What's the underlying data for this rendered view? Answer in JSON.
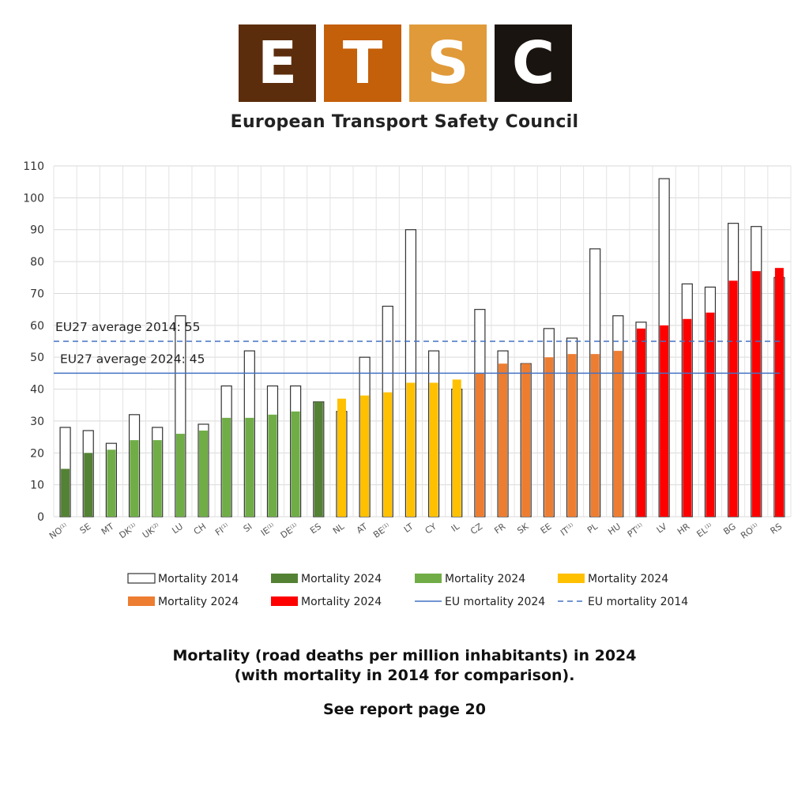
{
  "logo": {
    "letters": [
      {
        "char": "E",
        "color": "#5c2d0c"
      },
      {
        "char": "T",
        "color": "#c45f0a"
      },
      {
        "char": "S",
        "color": "#e09a3a"
      },
      {
        "char": "C",
        "color": "#1a1410"
      }
    ],
    "organization": "European Transport Safety Council"
  },
  "caption": {
    "line1": "Mortality (road deaths per million inhabitants) in 2024",
    "line2": "(with mortality in 2014 for comparison).",
    "line3": "See report page 20"
  },
  "colors": {
    "dark_green": "#548235",
    "light_green": "#70ad47",
    "yellow": "#ffc000",
    "orange": "#ed7d31",
    "red": "#ff0000",
    "eu_line": "#4472c4"
  },
  "chart_data": {
    "type": "bar",
    "ylim": [
      0,
      110
    ],
    "yticks": [
      0,
      10,
      20,
      30,
      40,
      50,
      60,
      70,
      80,
      90,
      100,
      110
    ],
    "grid": true,
    "categories": [
      {
        "code": "NO",
        "sup": "(1)"
      },
      {
        "code": "SE",
        "sup": ""
      },
      {
        "code": "MT",
        "sup": ""
      },
      {
        "code": "DK",
        "sup": "(1)"
      },
      {
        "code": "UK",
        "sup": "(2)"
      },
      {
        "code": "LU",
        "sup": ""
      },
      {
        "code": "CH",
        "sup": ""
      },
      {
        "code": "FI",
        "sup": "(1)"
      },
      {
        "code": "SI",
        "sup": ""
      },
      {
        "code": "IE",
        "sup": "(1)"
      },
      {
        "code": "DE",
        "sup": "(1)"
      },
      {
        "code": "ES",
        "sup": ""
      },
      {
        "code": "NL",
        "sup": ""
      },
      {
        "code": "AT",
        "sup": ""
      },
      {
        "code": "BE",
        "sup": "(1)"
      },
      {
        "code": "LT",
        "sup": ""
      },
      {
        "code": "CY",
        "sup": ""
      },
      {
        "code": "IL",
        "sup": ""
      },
      {
        "code": "CZ",
        "sup": ""
      },
      {
        "code": "FR",
        "sup": ""
      },
      {
        "code": "SK",
        "sup": ""
      },
      {
        "code": "EE",
        "sup": ""
      },
      {
        "code": "IT",
        "sup": "(1)"
      },
      {
        "code": "PL",
        "sup": ""
      },
      {
        "code": "HU",
        "sup": ""
      },
      {
        "code": "PT",
        "sup": "(1)"
      },
      {
        "code": "LV",
        "sup": ""
      },
      {
        "code": "HR",
        "sup": ""
      },
      {
        "code": "EL",
        "sup": "(1)"
      },
      {
        "code": "BG",
        "sup": ""
      },
      {
        "code": "RO",
        "sup": "(1)"
      },
      {
        "code": "RS",
        "sup": ""
      }
    ],
    "series": [
      {
        "name": "Mortality 2014",
        "values": [
          28,
          27,
          23,
          32,
          28,
          63,
          29,
          41,
          52,
          41,
          41,
          36,
          33,
          50,
          66,
          90,
          52,
          40,
          65,
          52,
          48,
          59,
          56,
          84,
          63,
          61,
          106,
          73,
          72,
          92,
          91,
          75
        ]
      },
      {
        "name": "Mortality 2024",
        "values": [
          15,
          20,
          21,
          24,
          24,
          26,
          27,
          31,
          31,
          32,
          33,
          36,
          37,
          38,
          39,
          42,
          42,
          43,
          45,
          48,
          48,
          50,
          51,
          51,
          52,
          59,
          60,
          62,
          64,
          74,
          77,
          78
        ],
        "color_groups": [
          "dark_green",
          "dark_green",
          "light_green",
          "light_green",
          "light_green",
          "light_green",
          "light_green",
          "light_green",
          "light_green",
          "light_green",
          "light_green",
          "dark_green",
          "yellow",
          "yellow",
          "yellow",
          "yellow",
          "yellow",
          "yellow",
          "orange",
          "orange",
          "orange",
          "orange",
          "orange",
          "orange",
          "orange",
          "red",
          "red",
          "red",
          "red",
          "red",
          "red",
          "red"
        ]
      }
    ],
    "reference_lines": [
      {
        "label": "EU27 average 2014: 55",
        "value": 55,
        "style": "dashed"
      },
      {
        "label": "EU27 average 2024: 45",
        "value": 45,
        "style": "solid"
      }
    ],
    "legend": {
      "position": "bottom",
      "rows": [
        [
          {
            "label": "Mortality 2014",
            "kind": "outline"
          },
          {
            "label": "Mortality 2024",
            "kind": "fill",
            "color": "dark_green"
          },
          {
            "label": "Mortality 2024",
            "kind": "fill",
            "color": "light_green"
          },
          {
            "label": "Mortality 2024",
            "kind": "fill",
            "color": "yellow"
          }
        ],
        [
          {
            "label": "Mortality 2024",
            "kind": "fill",
            "color": "orange"
          },
          {
            "label": "Mortality 2024",
            "kind": "fill",
            "color": "red"
          },
          {
            "label": "EU mortality 2024",
            "kind": "line-solid"
          },
          {
            "label": "EU mortality 2014",
            "kind": "line-dashed"
          }
        ]
      ]
    }
  }
}
